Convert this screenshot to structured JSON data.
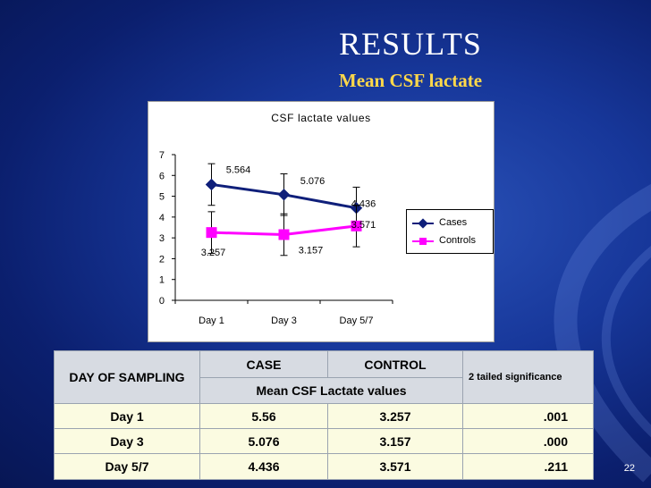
{
  "slide": {
    "title": "RESULTS",
    "subtitle": "Mean CSF lactate",
    "page_number": "22"
  },
  "colors": {
    "background": "#17379a",
    "subtitle": "#ffd84a",
    "cases": "#0f1f7a",
    "controls": "#ff00ff",
    "table_header": "#d7dbe2",
    "table_row": "#fbfbe1"
  },
  "chart_data": {
    "type": "line",
    "title": "CSF lactate values",
    "categories": [
      "Day 1",
      "Day 3",
      "Day 5/7"
    ],
    "ylim": [
      0,
      7
    ],
    "yticks": [
      "0",
      "1",
      "2",
      "3",
      "4",
      "5",
      "6",
      "7"
    ],
    "grid": false,
    "legend_position": "right",
    "series": [
      {
        "name": "Cases",
        "values": [
          5.564,
          5.076,
          4.436
        ],
        "labels": [
          "5.564",
          "5.076",
          "4.436"
        ],
        "error": [
          1.0,
          1.0,
          1.0
        ],
        "marker": "diamond",
        "color": "#0f1f7a"
      },
      {
        "name": "Controls",
        "values": [
          3.257,
          3.157,
          3.571
        ],
        "labels": [
          "3.257",
          "3.157",
          "3.571"
        ],
        "error": [
          1.0,
          1.0,
          1.0
        ],
        "marker": "square",
        "color": "#ff00ff"
      }
    ]
  },
  "table": {
    "header": {
      "day": "DAY OF SAMPLING",
      "case": "CASE",
      "control": "CONTROL",
      "significance": "2 tailed significance",
      "mean": "Mean CSF Lactate values"
    },
    "rows": [
      {
        "day": "Day 1",
        "case": "5.56",
        "control": "3.257",
        "p": ".001"
      },
      {
        "day": "Day 3",
        "case": "5.076",
        "control": "3.157",
        "p": ".000"
      },
      {
        "day": "Day 5/7",
        "case": "4.436",
        "control": "3.571",
        "p": ".211"
      }
    ]
  }
}
